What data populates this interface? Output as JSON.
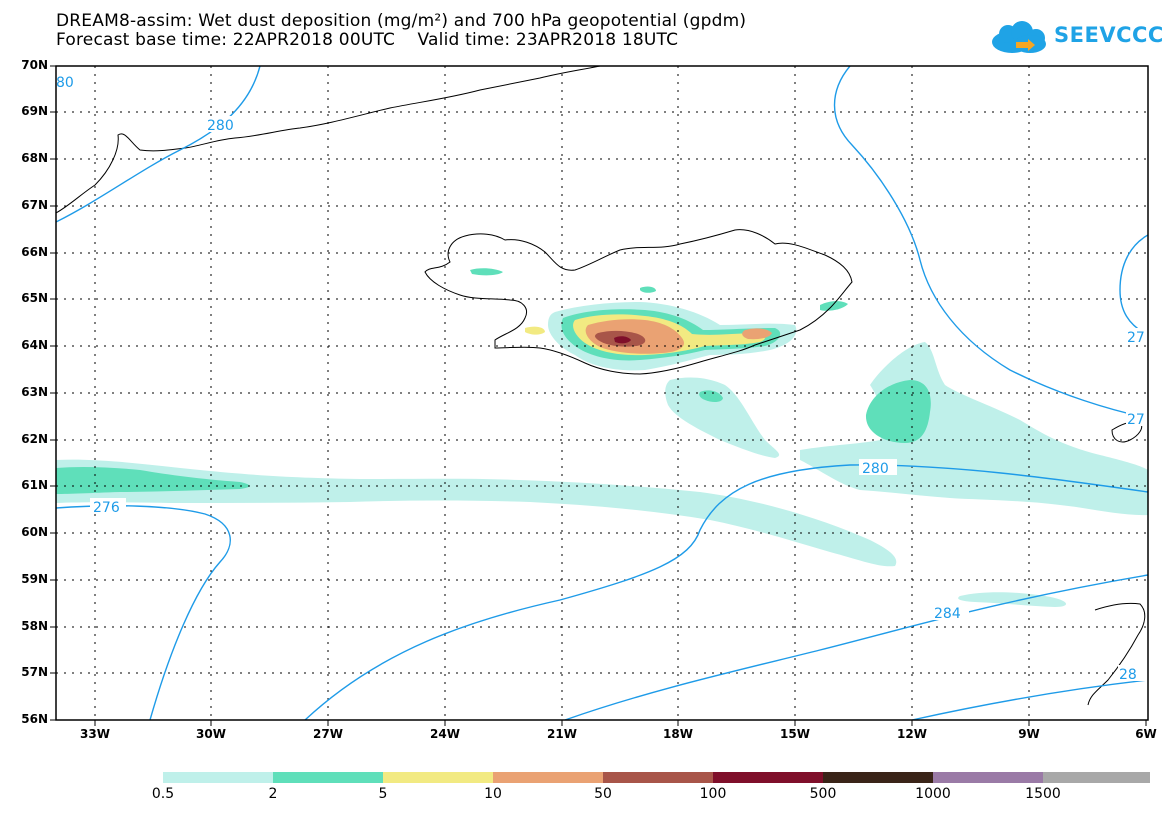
{
  "header": {
    "title_line1": "DREAM8-assim: Wet dust deposition (mg/m²) and 700 hPa geopotential (gpdm)",
    "title_line2": "Forecast base time: 22APR2018 00UTC    Valid time: 23APR2018 18UTC"
  },
  "logo": {
    "text": "SEEVCCC",
    "color": "#1fa3e6"
  },
  "axes": {
    "lat_labels": [
      "70N",
      "69N",
      "68N",
      "67N",
      "66N",
      "65N",
      "64N",
      "63N",
      "62N",
      "61N",
      "60N",
      "59N",
      "58N",
      "57N",
      "56N"
    ],
    "lon_labels": [
      "33W",
      "30W",
      "27W",
      "24W",
      "21W",
      "18W",
      "15W",
      "12W",
      "9W",
      "6W"
    ]
  },
  "contours": {
    "labels": [
      "80",
      "280",
      "276",
      "280",
      "284",
      "27",
      "27",
      "28"
    ],
    "line_color": "#1e9be8"
  },
  "legend": {
    "thresholds": [
      "0.5",
      "2",
      "5",
      "10",
      "50",
      "100",
      "500",
      "1000",
      "1500"
    ],
    "colors": [
      "#bff0ea",
      "#5fdfba",
      "#f2ea82",
      "#eaa273",
      "#a85549",
      "#7f0f2a",
      "#3a2418",
      "#9a7aa6",
      "#a8a8a8"
    ]
  }
}
